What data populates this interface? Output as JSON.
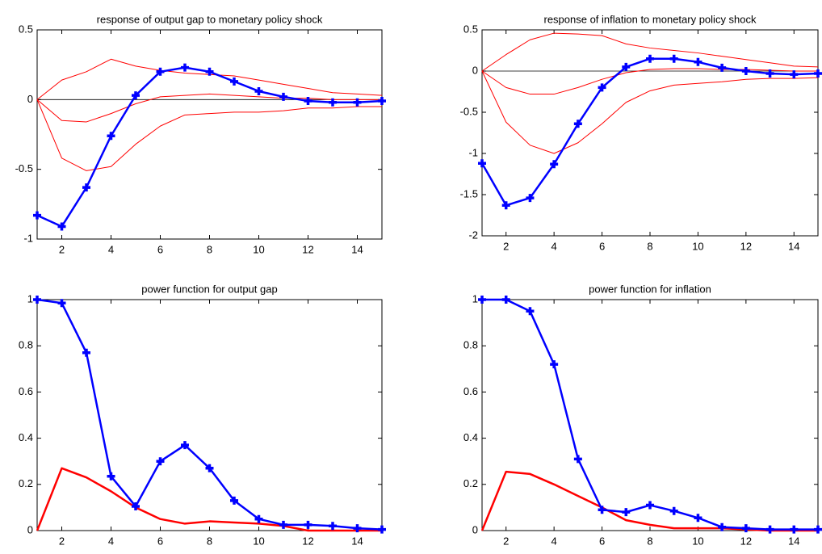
{
  "chart_data": [
    {
      "type": "line",
      "title": "response of output gap to monetary policy shock",
      "x": [
        1,
        2,
        3,
        4,
        5,
        6,
        7,
        8,
        9,
        10,
        11,
        12,
        13,
        14,
        15
      ],
      "xlim": [
        1,
        15
      ],
      "xticks": [
        2,
        4,
        6,
        8,
        10,
        12,
        14
      ],
      "ylim": [
        -1,
        0.5
      ],
      "yticks": [
        -1,
        -0.5,
        0,
        0.5
      ],
      "reference_line": 0,
      "series": [
        {
          "color": "#ff0000",
          "linewidth": 1,
          "values": [
            0,
            0.14,
            0.2,
            0.29,
            0.24,
            0.21,
            0.19,
            0.18,
            0.17,
            0.14,
            0.11,
            0.08,
            0.05,
            0.04,
            0.03
          ]
        },
        {
          "color": "#ff0000",
          "linewidth": 1,
          "values": [
            0,
            -0.15,
            -0.16,
            -0.1,
            -0.03,
            0.02,
            0.03,
            0.04,
            0.03,
            0.02,
            0.01,
            0.01,
            0,
            0,
            0
          ]
        },
        {
          "color": "#ff0000",
          "linewidth": 1,
          "values": [
            0,
            -0.42,
            -0.51,
            -0.48,
            -0.32,
            -0.19,
            -0.11,
            -0.1,
            -0.09,
            -0.09,
            -0.08,
            -0.06,
            -0.06,
            -0.05,
            -0.05
          ]
        },
        {
          "color": "#0000ff",
          "linewidth": 2.5,
          "marker": "+",
          "values": [
            -0.83,
            -0.91,
            -0.63,
            -0.26,
            0.03,
            0.2,
            0.23,
            0.2,
            0.13,
            0.06,
            0.02,
            -0.01,
            -0.02,
            -0.02,
            -0.01
          ]
        }
      ]
    },
    {
      "type": "line",
      "title": "response of inflation to monetary policy shock",
      "x": [
        1,
        2,
        3,
        4,
        5,
        6,
        7,
        8,
        9,
        10,
        11,
        12,
        13,
        14,
        15
      ],
      "xlim": [
        1,
        15
      ],
      "xticks": [
        2,
        4,
        6,
        8,
        10,
        12,
        14
      ],
      "ylim": [
        -2,
        0.5
      ],
      "yticks": [
        -2,
        -1.5,
        -1,
        -0.5,
        0,
        0.5
      ],
      "reference_line": 0,
      "series": [
        {
          "color": "#ff0000",
          "linewidth": 1,
          "values": [
            0,
            0.2,
            0.38,
            0.46,
            0.45,
            0.43,
            0.33,
            0.28,
            0.25,
            0.22,
            0.18,
            0.14,
            0.1,
            0.06,
            0.05
          ]
        },
        {
          "color": "#ff0000",
          "linewidth": 1,
          "values": [
            0,
            -0.2,
            -0.28,
            -0.28,
            -0.2,
            -0.1,
            -0.02,
            0.02,
            0.03,
            0.03,
            0.02,
            0.02,
            0.01,
            0,
            0
          ]
        },
        {
          "color": "#ff0000",
          "linewidth": 1,
          "values": [
            0,
            -0.62,
            -0.9,
            -1,
            -0.87,
            -0.64,
            -0.38,
            -0.24,
            -0.17,
            -0.15,
            -0.13,
            -0.1,
            -0.09,
            -0.09,
            -0.08
          ]
        },
        {
          "color": "#0000ff",
          "linewidth": 2.5,
          "marker": "+",
          "values": [
            -1.12,
            -1.63,
            -1.54,
            -1.13,
            -0.64,
            -0.2,
            0.05,
            0.15,
            0.15,
            0.11,
            0.04,
            0,
            -0.03,
            -0.04,
            -0.03
          ]
        }
      ]
    },
    {
      "type": "line",
      "title": "power function for output gap",
      "x": [
        1,
        2,
        3,
        4,
        5,
        6,
        7,
        8,
        9,
        10,
        11,
        12,
        13,
        14,
        15
      ],
      "xlim": [
        1,
        15
      ],
      "xticks": [
        2,
        4,
        6,
        8,
        10,
        12,
        14
      ],
      "ylim": [
        0,
        1
      ],
      "yticks": [
        0,
        0.2,
        0.4,
        0.6,
        0.8,
        1
      ],
      "series": [
        {
          "color": "#ff0000",
          "linewidth": 2.5,
          "values": [
            0,
            0.27,
            0.23,
            0.17,
            0.1,
            0.05,
            0.03,
            0.04,
            0.035,
            0.03,
            0.02,
            0,
            0,
            0,
            0
          ]
        },
        {
          "color": "#0000ff",
          "linewidth": 2.5,
          "marker": "+",
          "values": [
            1,
            0.985,
            0.77,
            0.235,
            0.105,
            0.3,
            0.37,
            0.27,
            0.13,
            0.05,
            0.025,
            0.025,
            0.02,
            0.01,
            0.005
          ]
        }
      ]
    },
    {
      "type": "line",
      "title": "power function for inflation",
      "x": [
        1,
        2,
        3,
        4,
        5,
        6,
        7,
        8,
        9,
        10,
        11,
        12,
        13,
        14,
        15
      ],
      "xlim": [
        1,
        15
      ],
      "xticks": [
        2,
        4,
        6,
        8,
        10,
        12,
        14
      ],
      "ylim": [
        0,
        1
      ],
      "yticks": [
        0,
        0.2,
        0.4,
        0.6,
        0.8,
        1
      ],
      "series": [
        {
          "color": "#ff0000",
          "linewidth": 2.5,
          "values": [
            0,
            0.255,
            0.245,
            0.2,
            0.15,
            0.1,
            0.045,
            0.025,
            0.01,
            0.01,
            0.01,
            0.005,
            0,
            0,
            0
          ]
        },
        {
          "color": "#0000ff",
          "linewidth": 2.5,
          "marker": "+",
          "values": [
            1,
            1,
            0.95,
            0.72,
            0.31,
            0.09,
            0.08,
            0.11,
            0.085,
            0.055,
            0.015,
            0.01,
            0.005,
            0.005,
            0.005
          ]
        }
      ]
    }
  ]
}
